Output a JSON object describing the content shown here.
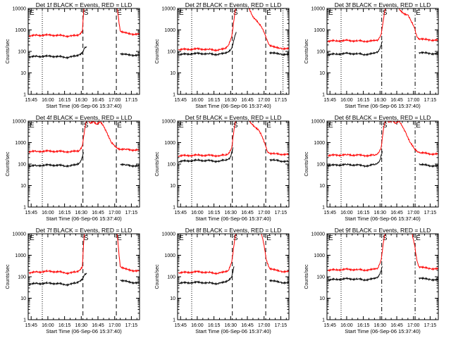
{
  "figure": {
    "panel_titles": [
      "Det 1f BLACK = Events, RED = LLD",
      "Det 2f BLACK = Events, RED = LLD",
      "Det 3f BLACK = Events, RED = LLD",
      "Det 4f BLACK = Events, RED = LLD",
      "Det 5f BLACK = Events, RED = LLD",
      "Det 6f BLACK = Events, RED = LLD",
      "Det 7f BLACK = Events, RED = LLD",
      "Det 8f BLACK = Events, RED = LLD",
      "Det 9f BLACK = Events, RED = LLD"
    ],
    "xlabel": "Start Time (06-Sep-06 15:37:40)",
    "ylabel": "Counts/sec",
    "xticks": [
      "15:45",
      "16:00",
      "16:15",
      "16:30",
      "16:45",
      "17:00",
      "17:15"
    ],
    "yticks": [
      "1",
      "10",
      "100",
      "1000",
      "10000"
    ],
    "marker_labels": [
      "E",
      "S",
      "E"
    ],
    "colors": {
      "events": "#000000",
      "lld": "#ff0000"
    }
  },
  "chart_data": [
    {
      "type": "line",
      "detector": "1f",
      "ylog": true,
      "xrange_min": [
        -2.67,
        97.33
      ],
      "ylim": [
        1,
        10000
      ],
      "series": [
        {
          "name": "BLACK = Events",
          "x": [
            -2,
            5,
            15,
            25,
            30,
            35,
            40,
            43,
            46,
            48,
            50,
            52,
            55,
            58,
            62,
            70,
            75,
            80,
            85,
            90,
            97
          ],
          "y": [
            55,
            58,
            60,
            58,
            52,
            55,
            60,
            70,
            90,
            140,
            160,
            null,
            null,
            null,
            null,
            null,
            null,
            80,
            70,
            68,
            65
          ]
        },
        {
          "name": "RED = LLD",
          "x": [
            -2,
            5,
            15,
            25,
            30,
            35,
            40,
            43,
            46,
            47,
            48,
            55,
            62,
            72,
            77,
            80,
            85,
            90,
            97
          ],
          "y": [
            520,
            560,
            580,
            560,
            520,
            520,
            540,
            600,
            900,
            6000,
            14000,
            14000,
            14000,
            14000,
            14000,
            900,
            700,
            650,
            620
          ]
        }
      ],
      "vlines": [
        {
          "x": 10,
          "style": "dotted"
        },
        {
          "x": 46.5,
          "style": "dashed"
        },
        {
          "x": 76.5,
          "style": "dashed"
        }
      ]
    },
    {
      "type": "line",
      "detector": "2f",
      "ylog": true,
      "xrange_min": [
        -2.67,
        97.33
      ],
      "ylim": [
        1,
        10000
      ],
      "series": [
        {
          "name": "BLACK = Events",
          "x": [
            -2,
            5,
            15,
            25,
            30,
            35,
            40,
            43,
            46,
            48,
            50,
            55,
            60,
            65,
            70,
            72,
            75,
            77,
            80,
            85,
            90,
            97
          ],
          "y": [
            70,
            75,
            80,
            78,
            72,
            75,
            80,
            100,
            140,
            350,
            800,
            null,
            null,
            null,
            null,
            null,
            null,
            null,
            90,
            80,
            75,
            70
          ]
        },
        {
          "name": "RED = LLD",
          "x": [
            -2,
            5,
            15,
            25,
            30,
            35,
            40,
            43,
            46,
            48,
            50,
            55,
            60,
            65,
            68,
            72,
            75,
            78,
            80,
            85,
            90,
            97
          ],
          "y": [
            120,
            125,
            130,
            125,
            115,
            120,
            130,
            200,
            500,
            3000,
            14000,
            14000,
            14000,
            4000,
            3000,
            1500,
            800,
            300,
            200,
            150,
            140,
            130
          ]
        }
      ],
      "vlines": [
        {
          "x": 10,
          "style": "dotted"
        },
        {
          "x": 46.5,
          "style": "dashed"
        },
        {
          "x": 76.5,
          "style": "dashed"
        },
        {
          "x": 92,
          "style": "dotted"
        }
      ]
    },
    {
      "type": "line",
      "detector": "3f",
      "ylog": true,
      "xrange_min": [
        -2.67,
        97.33
      ],
      "ylim": [
        1,
        10000
      ],
      "series": [
        {
          "name": "BLACK = Events",
          "x": [
            -2,
            5,
            15,
            25,
            30,
            35,
            40,
            43,
            45,
            47,
            48,
            55,
            60,
            65,
            70,
            75,
            78,
            80,
            85,
            90,
            97
          ],
          "y": [
            70,
            75,
            80,
            78,
            72,
            75,
            80,
            100,
            140,
            300,
            null,
            null,
            null,
            null,
            null,
            null,
            null,
            90,
            85,
            80,
            75
          ]
        },
        {
          "name": "RED = LLD",
          "x": [
            -2,
            5,
            15,
            25,
            30,
            35,
            40,
            43,
            46,
            48,
            50,
            55,
            60,
            63,
            66,
            70,
            73,
            76,
            78,
            80,
            85,
            90,
            97
          ],
          "y": [
            300,
            310,
            320,
            310,
            300,
            300,
            310,
            350,
            600,
            3000,
            12000,
            14000,
            14000,
            8000,
            6000,
            5000,
            2500,
            1200,
            500,
            400,
            360,
            340,
            330
          ]
        }
      ],
      "vlines": [
        {
          "x": 10,
          "style": "dotted"
        },
        {
          "x": 46.5,
          "style": "dashdot"
        },
        {
          "x": 76.5,
          "style": "dashdot"
        }
      ]
    },
    {
      "type": "line",
      "detector": "4f",
      "ylog": true,
      "xrange_min": [
        -2.67,
        97.33
      ],
      "ylim": [
        1,
        10000
      ],
      "series": [
        {
          "name": "BLACK = Events",
          "x": [
            -2,
            5,
            15,
            25,
            30,
            35,
            40,
            43,
            45,
            47,
            48,
            55,
            60,
            65,
            70,
            75,
            78,
            80,
            85,
            90,
            97
          ],
          "y": [
            80,
            85,
            90,
            88,
            82,
            85,
            90,
            110,
            150,
            350,
            null,
            null,
            null,
            null,
            null,
            null,
            null,
            100,
            90,
            85,
            80
          ]
        },
        {
          "name": "RED = LLD",
          "x": [
            -2,
            5,
            15,
            25,
            30,
            35,
            40,
            43,
            46,
            48,
            50,
            53,
            56,
            59,
            62,
            65,
            68,
            72,
            76,
            80,
            85,
            90,
            97
          ],
          "y": [
            380,
            390,
            400,
            390,
            380,
            380,
            390,
            420,
            700,
            4000,
            12000,
            8000,
            10000,
            7000,
            9000,
            6000,
            3000,
            1000,
            600,
            500,
            480,
            460,
            450
          ]
        }
      ],
      "vlines": [
        {
          "x": 10,
          "style": "dotted"
        },
        {
          "x": 46.5,
          "style": "dashed"
        },
        {
          "x": 76.5,
          "style": "dashed"
        }
      ]
    },
    {
      "type": "line",
      "detector": "5f",
      "ylog": true,
      "xrange_min": [
        -2.67,
        97.33
      ],
      "ylim": [
        1,
        10000
      ],
      "series": [
        {
          "name": "BLACK = Events",
          "x": [
            -2,
            5,
            15,
            25,
            30,
            35,
            40,
            43,
            45,
            47,
            48,
            55,
            60,
            65,
            70,
            75,
            78,
            80,
            85,
            90,
            97
          ],
          "y": [
            130,
            140,
            150,
            145,
            135,
            140,
            150,
            170,
            220,
            600,
            null,
            null,
            null,
            null,
            null,
            null,
            null,
            160,
            150,
            140,
            130
          ]
        },
        {
          "name": "RED = LLD",
          "x": [
            -2,
            5,
            15,
            25,
            30,
            35,
            40,
            43,
            46,
            48,
            50,
            55,
            60,
            63,
            66,
            70,
            73,
            76,
            78,
            80,
            85,
            90,
            97
          ],
          "y": [
            240,
            250,
            260,
            255,
            245,
            250,
            260,
            300,
            600,
            4000,
            13000,
            14000,
            14000,
            8000,
            6000,
            4000,
            2000,
            800,
            400,
            320,
            300,
            290,
            280
          ]
        }
      ],
      "vlines": [
        {
          "x": 10,
          "style": "dotted"
        },
        {
          "x": 46.5,
          "style": "dashed"
        },
        {
          "x": 76.5,
          "style": "dashed"
        }
      ]
    },
    {
      "type": "line",
      "detector": "6f",
      "ylog": true,
      "xrange_min": [
        -2.67,
        97.33
      ],
      "ylim": [
        1,
        10000
      ],
      "series": [
        {
          "name": "BLACK = Events",
          "x": [
            -2,
            5,
            15,
            25,
            30,
            35,
            40,
            43,
            45,
            47,
            48,
            55,
            60,
            65,
            70,
            75,
            78,
            80,
            85,
            90,
            97
          ],
          "y": [
            85,
            90,
            95,
            90,
            82,
            85,
            95,
            110,
            160,
            400,
            null,
            null,
            null,
            null,
            null,
            null,
            null,
            100,
            90,
            85,
            80
          ]
        },
        {
          "name": "RED = LLD",
          "x": [
            -2,
            5,
            15,
            25,
            30,
            35,
            40,
            43,
            46,
            48,
            50,
            53,
            56,
            59,
            62,
            65,
            68,
            72,
            76,
            80,
            85,
            90,
            97
          ],
          "y": [
            250,
            260,
            270,
            260,
            250,
            250,
            260,
            300,
            600,
            4000,
            12000,
            9000,
            11000,
            8000,
            9500,
            6000,
            3000,
            1000,
            500,
            350,
            320,
            300,
            290
          ]
        }
      ],
      "vlines": [
        {
          "x": 10,
          "style": "dotted"
        },
        {
          "x": 46.5,
          "style": "dashdot"
        },
        {
          "x": 76.5,
          "style": "dashdot"
        }
      ]
    },
    {
      "type": "line",
      "detector": "7f",
      "ylog": true,
      "xrange_min": [
        -2.67,
        97.33
      ],
      "ylim": [
        1,
        10000
      ],
      "series": [
        {
          "name": "BLACK = Events",
          "x": [
            -2,
            5,
            15,
            25,
            30,
            35,
            40,
            43,
            46,
            48,
            50,
            52,
            55,
            58,
            62,
            70,
            75,
            80,
            85,
            90,
            97
          ],
          "y": [
            45,
            48,
            50,
            48,
            42,
            45,
            50,
            60,
            80,
            120,
            140,
            null,
            null,
            null,
            null,
            null,
            null,
            70,
            60,
            55,
            50
          ]
        },
        {
          "name": "RED = LLD",
          "x": [
            -2,
            5,
            15,
            25,
            30,
            35,
            40,
            43,
            46,
            47,
            48,
            55,
            62,
            72,
            77,
            80,
            85,
            90,
            97
          ],
          "y": [
            150,
            165,
            180,
            170,
            150,
            150,
            165,
            190,
            300,
            3000,
            14000,
            14000,
            14000,
            14000,
            14000,
            300,
            220,
            200,
            180
          ]
        }
      ],
      "vlines": [
        {
          "x": 10,
          "style": "dotted"
        },
        {
          "x": 46.5,
          "style": "dashed"
        },
        {
          "x": 76.5,
          "style": "dashed"
        }
      ]
    },
    {
      "type": "line",
      "detector": "8f",
      "ylog": true,
      "xrange_min": [
        -2.67,
        97.33
      ],
      "ylim": [
        1,
        10000
      ],
      "series": [
        {
          "name": "BLACK = Events",
          "x": [
            -2,
            5,
            15,
            25,
            30,
            35,
            40,
            43,
            46,
            48,
            50,
            55,
            60,
            65,
            70,
            72,
            75,
            77,
            80,
            85,
            90,
            97
          ],
          "y": [
            50,
            52,
            55,
            52,
            48,
            50,
            55,
            70,
            100,
            300,
            null,
            null,
            null,
            null,
            null,
            null,
            null,
            null,
            70,
            60,
            55,
            50
          ]
        },
        {
          "name": "RED = LLD",
          "x": [
            -2,
            5,
            15,
            25,
            30,
            35,
            40,
            43,
            46,
            48,
            50,
            55,
            60,
            65,
            68,
            72,
            75,
            77,
            80,
            85,
            90,
            97
          ],
          "y": [
            150,
            160,
            170,
            160,
            145,
            150,
            165,
            200,
            500,
            3000,
            14000,
            14000,
            14000,
            14000,
            14000,
            14000,
            3000,
            600,
            250,
            200,
            180,
            170
          ]
        }
      ],
      "vlines": [
        {
          "x": 10,
          "style": "dotted"
        },
        {
          "x": 46.5,
          "style": "dashed"
        },
        {
          "x": 76.5,
          "style": "dashed"
        }
      ]
    },
    {
      "type": "line",
      "detector": "9f",
      "ylog": true,
      "xrange_min": [
        -2.67,
        97.33
      ],
      "ylim": [
        1,
        10000
      ],
      "series": [
        {
          "name": "BLACK = Events",
          "x": [
            -2,
            5,
            15,
            25,
            30,
            35,
            40,
            43,
            45,
            47,
            48,
            55,
            60,
            65,
            70,
            75,
            78,
            80,
            85,
            90,
            97
          ],
          "y": [
            70,
            75,
            80,
            78,
            72,
            75,
            80,
            100,
            140,
            300,
            null,
            null,
            null,
            null,
            null,
            null,
            null,
            90,
            80,
            75,
            70
          ]
        },
        {
          "name": "RED = LLD",
          "x": [
            -2,
            5,
            15,
            25,
            30,
            35,
            40,
            43,
            46,
            48,
            50,
            55,
            60,
            65,
            70,
            73,
            76,
            78,
            80,
            85,
            90,
            97
          ],
          "y": [
            200,
            210,
            220,
            215,
            205,
            210,
            220,
            260,
            600,
            4000,
            13000,
            14000,
            14000,
            14000,
            14000,
            14000,
            3000,
            600,
            300,
            260,
            240,
            230
          ]
        }
      ],
      "vlines": [
        {
          "x": 10,
          "style": "dotted"
        },
        {
          "x": 46.5,
          "style": "dashdot"
        },
        {
          "x": 76.5,
          "style": "dashdot"
        }
      ]
    }
  ]
}
